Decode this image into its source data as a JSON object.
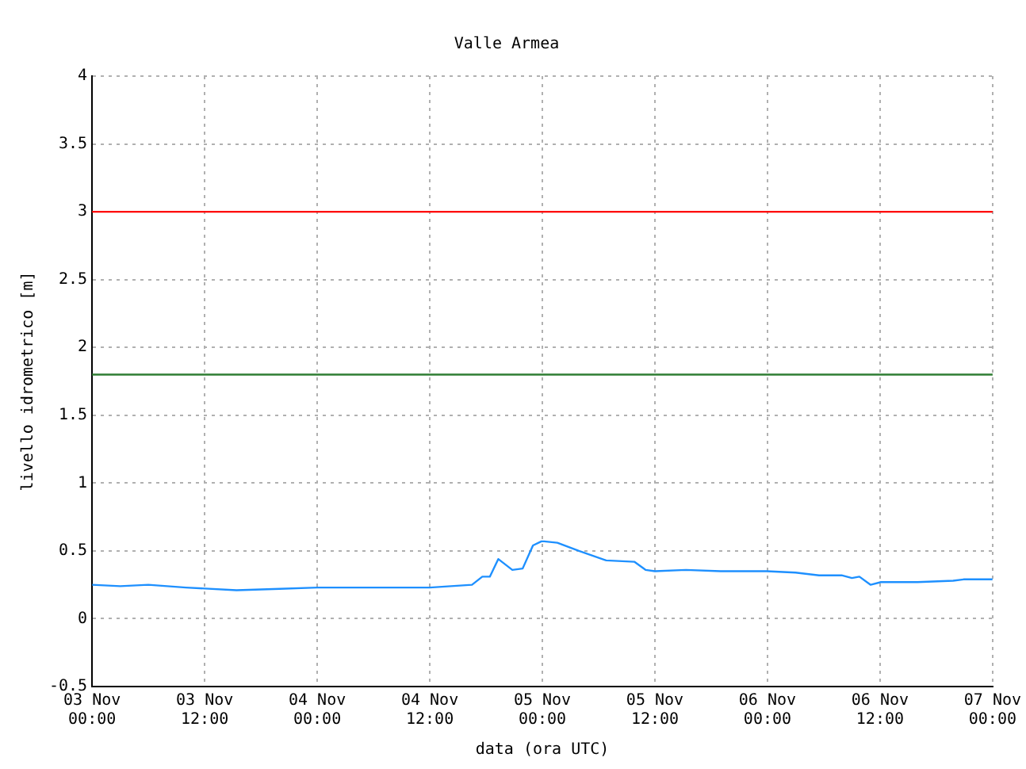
{
  "chart_data": {
    "type": "line",
    "title": "Valle Armea",
    "xlabel": "data (ora UTC)",
    "ylabel": "livello idrometrico [m]",
    "x": [
      "--11-03T00:00",
      "--11-03T03:00",
      "--11-03T06:00",
      "--11-03T10:00",
      "--11-03T15:24",
      "--11-03T20:00",
      "--11-04T00:00",
      "--11-04T06:00",
      "--11-04T12:00",
      "--11-04T16:30",
      "--11-04T17:36",
      "--11-04T18:24",
      "--11-04T19:18",
      "--11-04T20:48",
      "--11-04T21:54",
      "--11-04T23:00",
      "--11-04T23:54",
      "--11-05T00:12",
      "--11-05T01:36",
      "--11-05T03:54",
      "--11-05T06:48",
      "--11-05T09:48",
      "--11-05T11:00",
      "--11-05T12:00",
      "--11-05T15:18",
      "--11-05T19:00",
      "--11-05T23:54",
      "--11-06T03:00",
      "--11-06T05:30",
      "--11-06T07:54",
      "--11-06T09:00",
      "--11-06T09:48",
      "--11-06T11:00",
      "--11-06T12:06",
      "--11-06T16:00",
      "--11-06T19:48",
      "--11-06T20:54",
      "--11-07T00:00"
    ],
    "series": [
      {
        "color": "#1e90ff",
        "values": [
          0.25,
          0.24,
          0.25,
          0.23,
          0.21,
          0.22,
          0.23,
          0.23,
          0.23,
          0.25,
          0.31,
          0.31,
          0.44,
          0.36,
          0.37,
          0.54,
          0.57,
          0.57,
          0.56,
          0.5,
          0.43,
          0.42,
          0.36,
          0.35,
          0.36,
          0.35,
          0.35,
          0.34,
          0.32,
          0.32,
          0.3,
          0.31,
          0.25,
          0.27,
          0.27,
          0.28,
          0.29,
          0.29
        ]
      }
    ],
    "xlim": [
      "--11-03T00:00",
      "--11-07T00:00"
    ],
    "xticks": [
      {
        "value": "--11-03T00:00",
        "label": "03 Nov 00:00"
      },
      {
        "value": "--11-03T12:00",
        "label": "03 Nov 12:00"
      },
      {
        "value": "--11-04T00:00",
        "label": "04 Nov 00:00"
      },
      {
        "value": "--11-04T12:00",
        "label": "04 Nov 12:00"
      },
      {
        "value": "--11-05T00:00",
        "label": "05 Nov 00:00"
      },
      {
        "value": "--11-05T12:00",
        "label": "05 Nov 12:00"
      },
      {
        "value": "--11-06T00:00",
        "label": "06 Nov 00:00"
      },
      {
        "value": "--11-06T12:00",
        "label": "06 Nov 12:00"
      },
      {
        "value": "--11-07T00:00",
        "label": "07 Nov 00:00"
      }
    ],
    "ylim": [
      -0.5,
      4
    ],
    "yticks": [
      -0.5,
      0,
      0.5,
      1,
      1.5,
      2,
      2.5,
      3,
      3.5,
      4
    ],
    "ref_lines": [
      {
        "axis": "y",
        "value": 3,
        "color": "#ff0000"
      },
      {
        "axis": "y",
        "value": 1.8,
        "color": "#2e7d32"
      }
    ],
    "grid": true,
    "legend": false,
    "marker": "none",
    "line_style": "solid"
  }
}
